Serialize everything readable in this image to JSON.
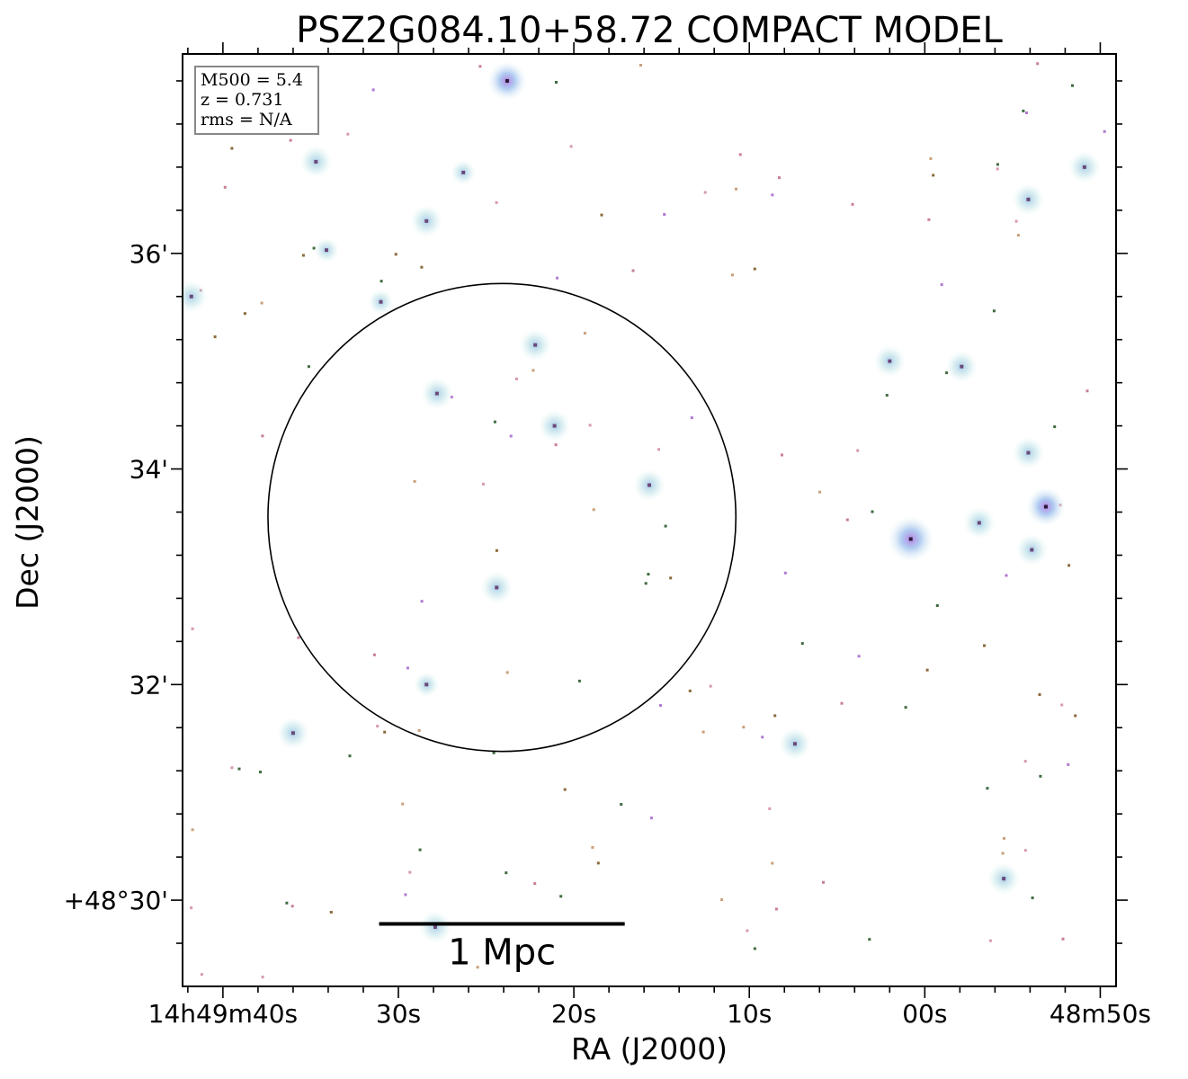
{
  "chart_data": {
    "type": "scatter",
    "title": "PSZ2G084.10+58.72 COMPACT MODEL",
    "xlabel": "RA (J2000)",
    "ylabel": "Dec (J2000)",
    "x_unit": "RA seconds offset from 14h48m00s",
    "y_unit": "Dec arcmin offset from +48°00'",
    "xlim": [
      102.3,
      49.1
    ],
    "ylim": [
      29.2,
      37.85
    ],
    "x_ticks": [
      {
        "value": 100,
        "label": "14h49m40s"
      },
      {
        "value": 90,
        "label": "30s"
      },
      {
        "value": 80,
        "label": "20s"
      },
      {
        "value": 70,
        "label": "10s"
      },
      {
        "value": 60,
        "label": "00s"
      },
      {
        "value": 50,
        "label": "48m50s"
      }
    ],
    "y_ticks": [
      {
        "value": 30,
        "label": "+48°30'"
      },
      {
        "value": 32,
        "label": "32'"
      },
      {
        "value": 34,
        "label": "34'"
      },
      {
        "value": 36,
        "label": "36'"
      }
    ],
    "info_box": [
      "M500 = 5.4",
      "z = 0.731",
      "rms = N/A"
    ],
    "scale_bar_label": "1 Mpc",
    "scale_bar_width_deg_ra_s": 14.0,
    "scale_bar_center": {
      "ra_s": 84.1,
      "dec_min": 29.78
    },
    "circle": {
      "center_ra_s": 84.1,
      "center_dec_min": 33.55,
      "radius_arcmin": 2.17
    },
    "sources": [
      {
        "ra_s": 83.8,
        "dec_min": 37.6,
        "strength": 3
      },
      {
        "ra_s": 94.7,
        "dec_min": 36.85,
        "strength": 2
      },
      {
        "ra_s": 86.3,
        "dec_min": 36.75,
        "strength": 1
      },
      {
        "ra_s": 88.4,
        "dec_min": 36.3,
        "strength": 2
      },
      {
        "ra_s": 94.1,
        "dec_min": 36.03,
        "strength": 1
      },
      {
        "ra_s": 91.0,
        "dec_min": 35.55,
        "strength": 1
      },
      {
        "ra_s": 101.8,
        "dec_min": 35.6,
        "strength": 2
      },
      {
        "ra_s": 82.2,
        "dec_min": 35.15,
        "strength": 2
      },
      {
        "ra_s": 87.8,
        "dec_min": 34.7,
        "strength": 2
      },
      {
        "ra_s": 81.1,
        "dec_min": 34.4,
        "strength": 2
      },
      {
        "ra_s": 75.7,
        "dec_min": 33.85,
        "strength": 2
      },
      {
        "ra_s": 84.4,
        "dec_min": 32.9,
        "strength": 2
      },
      {
        "ra_s": 88.4,
        "dec_min": 32.0,
        "strength": 1
      },
      {
        "ra_s": 96.0,
        "dec_min": 31.55,
        "strength": 2
      },
      {
        "ra_s": 67.4,
        "dec_min": 31.45,
        "strength": 2
      },
      {
        "ra_s": 62.0,
        "dec_min": 35.0,
        "strength": 2
      },
      {
        "ra_s": 57.9,
        "dec_min": 34.95,
        "strength": 2
      },
      {
        "ra_s": 60.8,
        "dec_min": 33.35,
        "strength": 4
      },
      {
        "ra_s": 56.9,
        "dec_min": 33.5,
        "strength": 2
      },
      {
        "ra_s": 54.1,
        "dec_min": 34.15,
        "strength": 2
      },
      {
        "ra_s": 53.1,
        "dec_min": 33.65,
        "strength": 3
      },
      {
        "ra_s": 53.9,
        "dec_min": 33.25,
        "strength": 2
      },
      {
        "ra_s": 54.1,
        "dec_min": 36.5,
        "strength": 2
      },
      {
        "ra_s": 50.9,
        "dec_min": 36.8,
        "strength": 2
      },
      {
        "ra_s": 55.5,
        "dec_min": 30.2,
        "strength": 2
      },
      {
        "ra_s": 87.9,
        "dec_min": 29.75,
        "strength": 2
      }
    ]
  }
}
